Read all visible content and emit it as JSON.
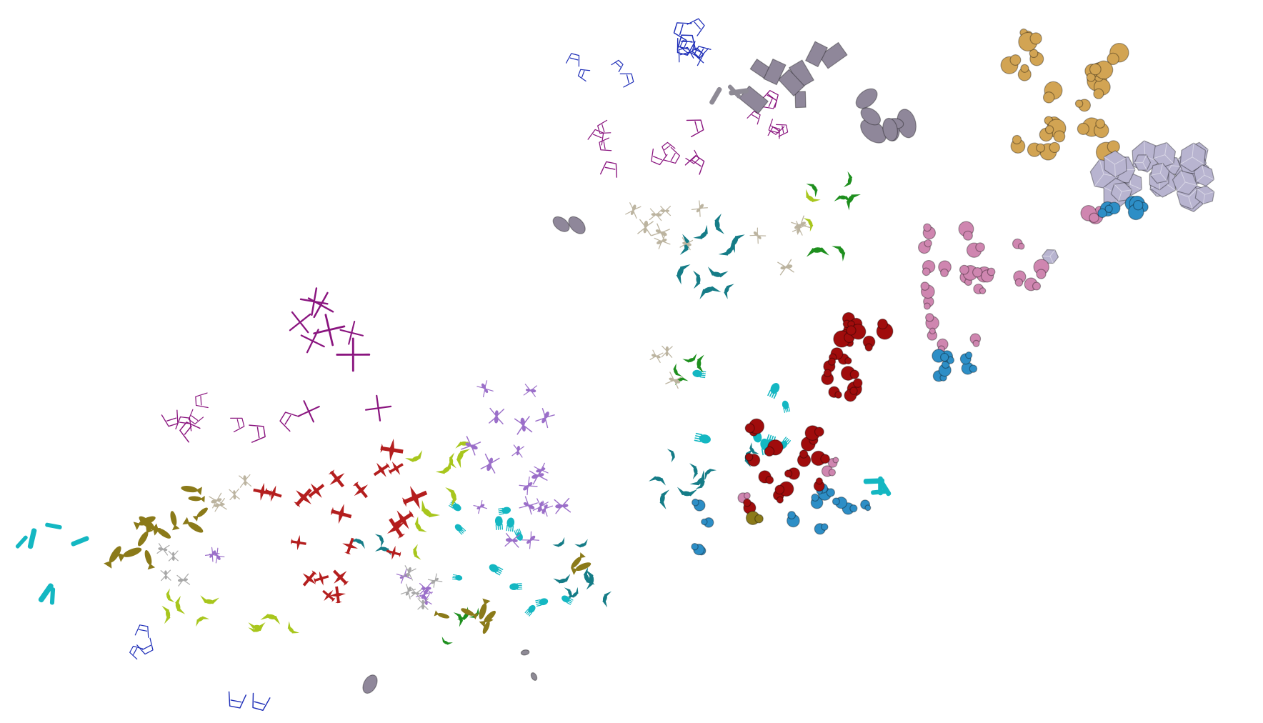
{
  "scene": {
    "caption": "",
    "palette": {
      "blue": "#1f2fb8",
      "purple": "#8a157f",
      "gray": "#8f879a",
      "yellow": "#d2a453",
      "lavender": "#b8b4d0",
      "pink": "#cf86b0",
      "azure": "#2d8ec6",
      "teal": "#157c87",
      "cyan": "#14b7c2",
      "green": "#1e8f1e",
      "lime": "#a8c61d",
      "crimson": "#a00c0c",
      "red": "#b41e1e",
      "violet": "#9b6fc9",
      "olive": "#8b7a19",
      "sand": "#bcb4a0",
      "stone": "#a8a8a8",
      "steel": "#8e8a95"
    },
    "category_names": [
      "blue-wireframe-icon",
      "purple-wire-icon",
      "gray-block-icon",
      "yellow-jar-icon",
      "lavender-box-icon",
      "pink-figure-icon",
      "azure-vase-icon",
      "teal-animal-icon",
      "cyan-hand-icon",
      "green-figure-icon",
      "lime-bird-icon",
      "crimson-creature-icon",
      "red-plane-icon",
      "violet-insect-icon",
      "olive-fish-icon",
      "sand-creature-icon",
      "stone-creature-icon",
      "steel-cylinder-icon"
    ]
  }
}
